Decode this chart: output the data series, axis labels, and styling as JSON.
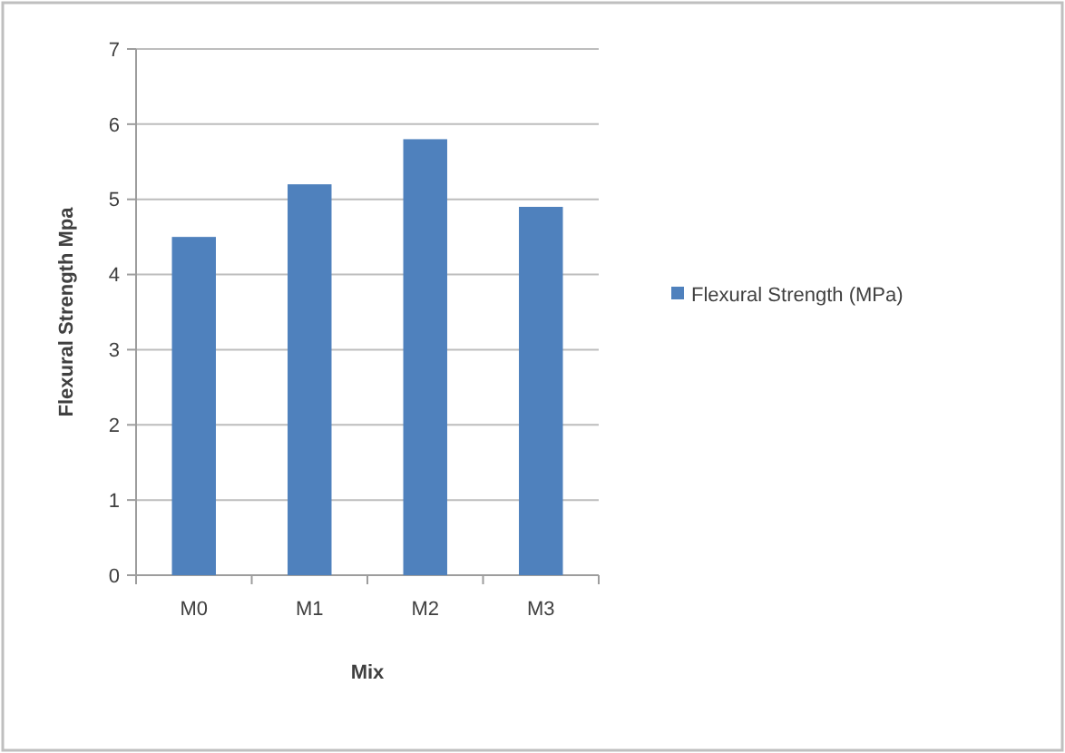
{
  "chart_data": {
    "type": "bar",
    "xlabel": "Mix",
    "ylabel": "Flexural Strength Mpa",
    "categories": [
      "M0",
      "M1",
      "M2",
      "M3"
    ],
    "series": [
      {
        "name": "Flexural Strength (MPa)",
        "color": "#4f81bd",
        "values": [
          4.5,
          5.2,
          5.8,
          4.9
        ]
      }
    ],
    "ylim": [
      0,
      7
    ],
    "yticks": [
      0,
      1,
      2,
      3,
      4,
      5,
      6,
      7
    ],
    "grid": "y",
    "legend": "right"
  }
}
